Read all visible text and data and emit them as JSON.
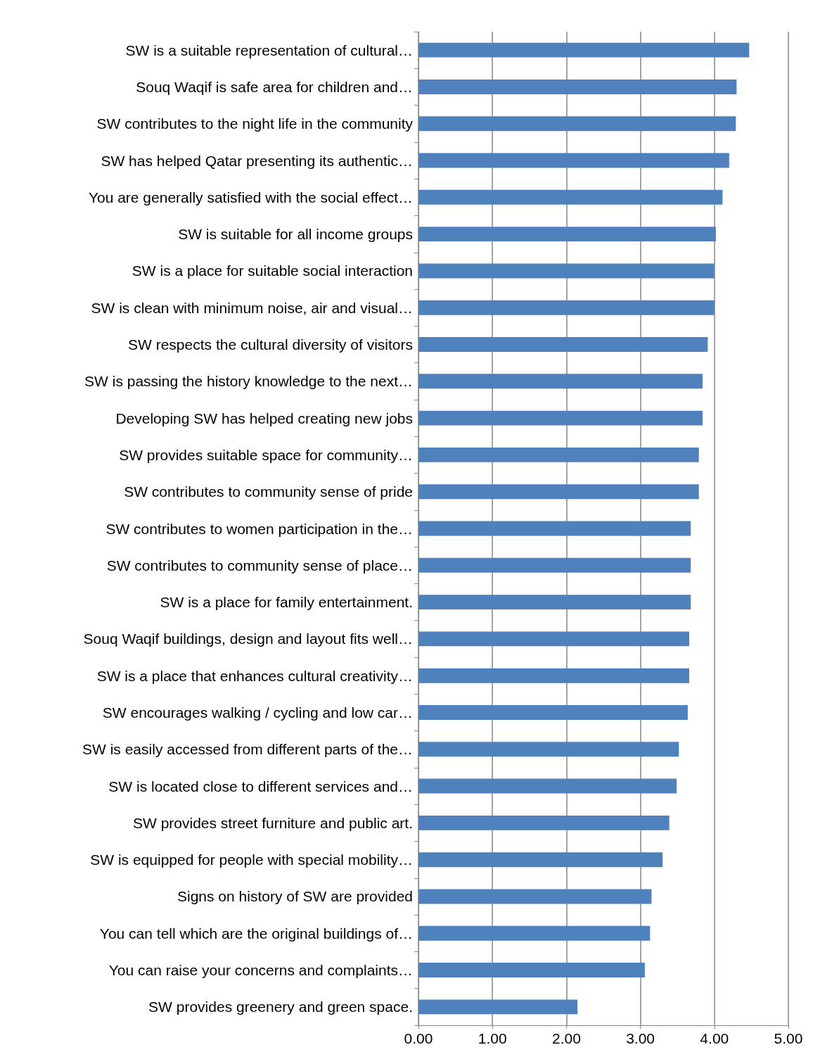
{
  "chart_data": {
    "type": "bar",
    "orientation": "horizontal",
    "categories": [
      "SW is a suitable representation of cultural…",
      "Souq Waqif is safe area for children and…",
      "SW contributes to the night life in the community",
      "SW has helped Qatar presenting its authentic…",
      "You are generally satisfied with the social effect…",
      "SW is suitable for all income groups",
      "SW is a place for suitable social interaction",
      "SW is clean with minimum noise, air and visual…",
      "SW respects the cultural diversity of visitors",
      "SW is passing the history knowledge to the next…",
      "Developing SW has helped creating new jobs",
      "SW provides suitable space for community…",
      "SW contributes to community sense of pride",
      "SW contributes to women participation in the…",
      "SW contributes to community sense of place…",
      "SW is a place for family entertainment.",
      "Souq Waqif buildings, design and layout fits well…",
      "SW is a place that enhances cultural creativity…",
      "SW encourages walking / cycling and low car…",
      "SW is easily accessed from different parts of the…",
      "SW is located close to different services and…",
      "SW provides street furniture and public art.",
      "SW is equipped for people with special mobility…",
      "Signs on history of SW are provided",
      "You can tell which are the original buildings of…",
      "You can raise your concerns and complaints…",
      "SW provides greenery and green space."
    ],
    "values": [
      4.47,
      4.3,
      4.29,
      4.2,
      4.11,
      4.02,
      4.0,
      4.0,
      3.91,
      3.84,
      3.84,
      3.79,
      3.79,
      3.68,
      3.68,
      3.68,
      3.66,
      3.66,
      3.64,
      3.52,
      3.49,
      3.39,
      3.3,
      3.15,
      3.13,
      3.06,
      2.15
    ],
    "color": "#4f81bd",
    "xlim": [
      0,
      5
    ],
    "xticks": [
      {
        "value": 0,
        "label": "0.00"
      },
      {
        "value": 1,
        "label": "1.00"
      },
      {
        "value": 2,
        "label": "2.00"
      },
      {
        "value": 3,
        "label": "3.00"
      },
      {
        "value": 4,
        "label": "4.00"
      },
      {
        "value": 5,
        "label": "5.00"
      }
    ],
    "grid": "x"
  }
}
